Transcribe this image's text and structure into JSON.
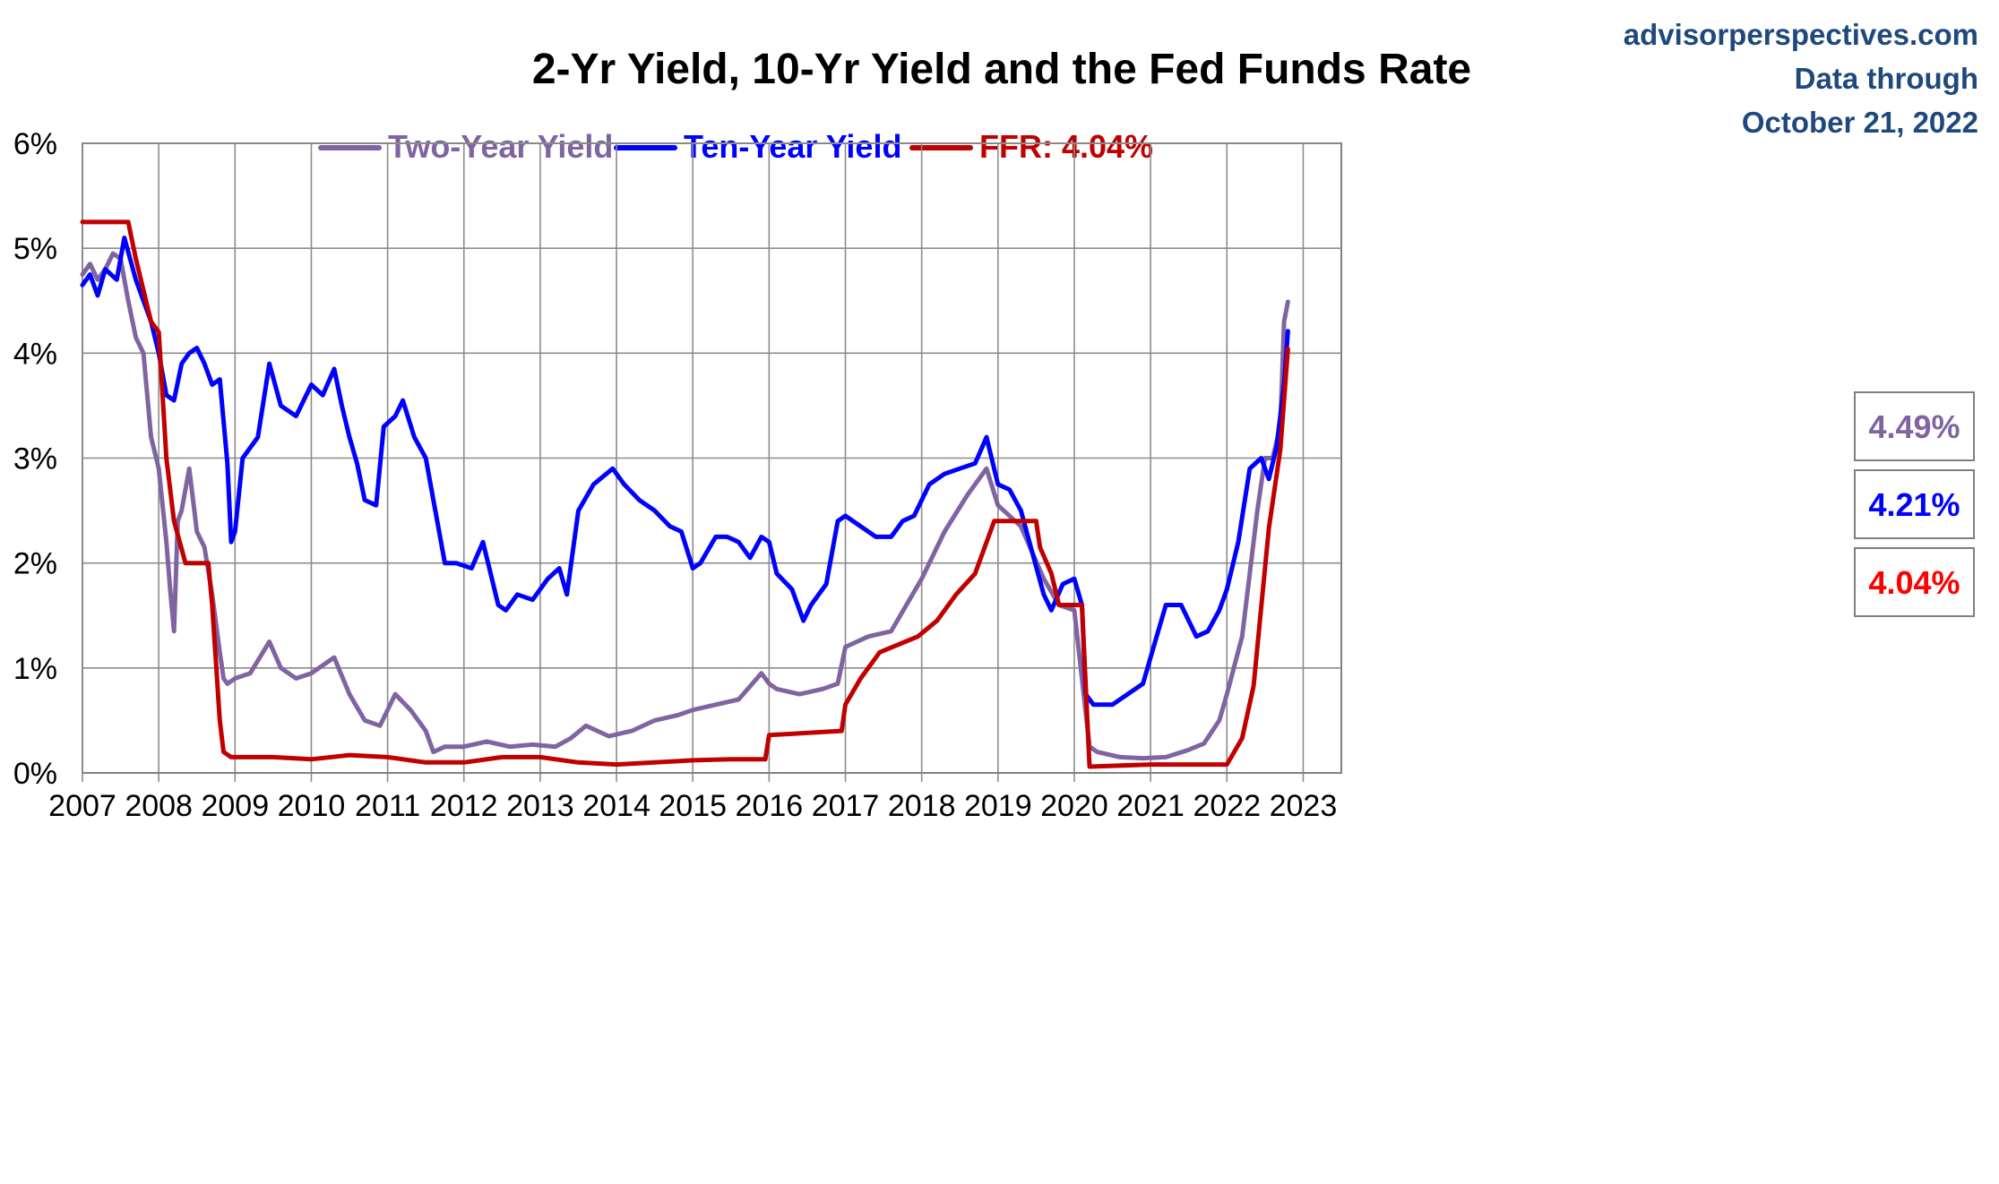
{
  "chart_data": {
    "type": "line",
    "title": "2-Yr Yield, 10-Yr Yield and the Fed Funds Rate",
    "xlabel": "",
    "ylabel": "",
    "xlim": [
      2007,
      2023
    ],
    "ylim": [
      0,
      6
    ],
    "grid": true,
    "legend_position": "top",
    "source_note": {
      "site": "advisorperspectives.com",
      "line2": "Data through",
      "line3": "October 21, 2022"
    },
    "x_ticks": [
      {
        "value": 2007,
        "label": "2007"
      },
      {
        "value": 2008,
        "label": "2008"
      },
      {
        "value": 2009,
        "label": "2009"
      },
      {
        "value": 2010,
        "label": "2010"
      },
      {
        "value": 2011,
        "label": "2011"
      },
      {
        "value": 2012,
        "label": "2012"
      },
      {
        "value": 2013,
        "label": "2013"
      },
      {
        "value": 2014,
        "label": "2014"
      },
      {
        "value": 2015,
        "label": "2015"
      },
      {
        "value": 2016,
        "label": "2016"
      },
      {
        "value": 2017,
        "label": "2017"
      },
      {
        "value": 2018,
        "label": "2018"
      },
      {
        "value": 2019,
        "label": "2019"
      },
      {
        "value": 2020,
        "label": "2020"
      },
      {
        "value": 2021,
        "label": "2021"
      },
      {
        "value": 2022,
        "label": "2022"
      },
      {
        "value": 2023,
        "label": "2023"
      }
    ],
    "y_ticks": [
      {
        "value": 0,
        "label": "0%"
      },
      {
        "value": 1,
        "label": "1%"
      },
      {
        "value": 2,
        "label": "2%"
      },
      {
        "value": 3,
        "label": "3%"
      },
      {
        "value": 4,
        "label": "4%"
      },
      {
        "value": 5,
        "label": "5%"
      },
      {
        "value": 6,
        "label": "6%"
      }
    ],
    "series": [
      {
        "name": "Two-Year Yield",
        "legend_label": "Two-Year Yield",
        "color": "#8064a2",
        "last_value_label": "4.49%",
        "x": [
          2007.0,
          2007.1,
          2007.2,
          2007.3,
          2007.4,
          2007.5,
          2007.6,
          2007.7,
          2007.8,
          2007.9,
          2008.0,
          2008.1,
          2008.15,
          2008.2,
          2008.25,
          2008.3,
          2008.4,
          2008.45,
          2008.5,
          2008.6,
          2008.7,
          2008.8,
          2008.85,
          2008.9,
          2009.0,
          2009.2,
          2009.45,
          2009.6,
          2009.8,
          2010.0,
          2010.3,
          2010.5,
          2010.7,
          2010.9,
          2011.1,
          2011.3,
          2011.5,
          2011.6,
          2011.75,
          2012.0,
          2012.3,
          2012.6,
          2012.9,
          2013.2,
          2013.4,
          2013.6,
          2013.9,
          2014.2,
          2014.5,
          2014.8,
          2015.0,
          2015.3,
          2015.6,
          2015.9,
          2016.0,
          2016.1,
          2016.4,
          2016.7,
          2016.9,
          2017.0,
          2017.3,
          2017.6,
          2017.8,
          2018.0,
          2018.3,
          2018.6,
          2018.85,
          2019.0,
          2019.3,
          2019.6,
          2019.8,
          2020.0,
          2020.1,
          2020.2,
          2020.3,
          2020.6,
          2020.9,
          2021.2,
          2021.5,
          2021.7,
          2021.9,
          2022.0,
          2022.2,
          2022.4,
          2022.5,
          2022.6,
          2022.7,
          2022.75,
          2022.8
        ],
        "y": [
          4.75,
          4.85,
          4.7,
          4.8,
          4.95,
          4.9,
          4.5,
          4.15,
          4.0,
          3.2,
          2.9,
          2.2,
          1.75,
          1.35,
          2.4,
          2.5,
          2.9,
          2.6,
          2.3,
          2.15,
          1.7,
          1.15,
          0.9,
          0.85,
          0.9,
          0.95,
          1.25,
          1.0,
          0.9,
          0.95,
          1.1,
          0.75,
          0.5,
          0.45,
          0.75,
          0.6,
          0.4,
          0.2,
          0.25,
          0.25,
          0.3,
          0.25,
          0.27,
          0.25,
          0.33,
          0.45,
          0.35,
          0.4,
          0.5,
          0.55,
          0.6,
          0.65,
          0.7,
          0.95,
          0.85,
          0.8,
          0.75,
          0.8,
          0.85,
          1.2,
          1.3,
          1.35,
          1.6,
          1.85,
          2.3,
          2.65,
          2.9,
          2.55,
          2.35,
          1.85,
          1.6,
          1.55,
          0.9,
          0.25,
          0.2,
          0.15,
          0.14,
          0.15,
          0.22,
          0.28,
          0.5,
          0.75,
          1.3,
          2.5,
          3.0,
          3.0,
          3.3,
          4.3,
          4.49
        ]
      },
      {
        "name": "Ten-Year Yield",
        "legend_label": "Ten-Year Yield",
        "color": "#0000ff",
        "last_value_label": "4.21%",
        "x": [
          2007.0,
          2007.1,
          2007.2,
          2007.3,
          2007.45,
          2007.55,
          2007.7,
          2007.8,
          2007.9,
          2008.0,
          2008.1,
          2008.2,
          2008.3,
          2008.4,
          2008.5,
          2008.6,
          2008.7,
          2008.8,
          2008.9,
          2008.95,
          2009.0,
          2009.1,
          2009.3,
          2009.45,
          2009.6,
          2009.8,
          2010.0,
          2010.15,
          2010.3,
          2010.4,
          2010.5,
          2010.6,
          2010.7,
          2010.85,
          2010.95,
          2011.1,
          2011.2,
          2011.35,
          2011.5,
          2011.6,
          2011.75,
          2011.9,
          2012.1,
          2012.25,
          2012.45,
          2012.55,
          2012.7,
          2012.9,
          2013.1,
          2013.25,
          2013.35,
          2013.5,
          2013.7,
          2013.95,
          2014.1,
          2014.3,
          2014.5,
          2014.7,
          2014.85,
          2015.0,
          2015.1,
          2015.3,
          2015.45,
          2015.6,
          2015.75,
          2015.9,
          2016.0,
          2016.1,
          2016.3,
          2016.45,
          2016.55,
          2016.75,
          2016.9,
          2017.0,
          2017.2,
          2017.4,
          2017.6,
          2017.75,
          2017.9,
          2018.1,
          2018.3,
          2018.5,
          2018.7,
          2018.85,
          2019.0,
          2019.15,
          2019.3,
          2019.45,
          2019.6,
          2019.7,
          2019.85,
          2020.0,
          2020.1,
          2020.15,
          2020.25,
          2020.5,
          2020.7,
          2020.9,
          2021.1,
          2021.2,
          2021.4,
          2021.6,
          2021.75,
          2021.9,
          2022.0,
          2022.15,
          2022.3,
          2022.45,
          2022.55,
          2022.65,
          2022.75,
          2022.8
        ],
        "y": [
          4.65,
          4.75,
          4.55,
          4.8,
          4.7,
          5.1,
          4.7,
          4.5,
          4.3,
          4.0,
          3.6,
          3.55,
          3.9,
          4.0,
          4.05,
          3.9,
          3.7,
          3.75,
          2.95,
          2.2,
          2.3,
          3.0,
          3.2,
          3.9,
          3.5,
          3.4,
          3.7,
          3.6,
          3.85,
          3.5,
          3.2,
          2.95,
          2.6,
          2.55,
          3.3,
          3.4,
          3.55,
          3.2,
          3.0,
          2.6,
          2.0,
          2.0,
          1.95,
          2.2,
          1.6,
          1.55,
          1.7,
          1.65,
          1.85,
          1.95,
          1.7,
          2.5,
          2.75,
          2.9,
          2.75,
          2.6,
          2.5,
          2.35,
          2.3,
          1.95,
          2.0,
          2.25,
          2.25,
          2.2,
          2.05,
          2.25,
          2.2,
          1.9,
          1.75,
          1.45,
          1.6,
          1.8,
          2.4,
          2.45,
          2.35,
          2.25,
          2.25,
          2.4,
          2.45,
          2.75,
          2.85,
          2.9,
          2.95,
          3.2,
          2.75,
          2.7,
          2.5,
          2.1,
          1.7,
          1.55,
          1.8,
          1.85,
          1.6,
          0.75,
          0.65,
          0.65,
          0.75,
          0.85,
          1.35,
          1.6,
          1.6,
          1.3,
          1.35,
          1.55,
          1.75,
          2.2,
          2.9,
          3.0,
          2.8,
          3.1,
          3.7,
          4.21
        ]
      },
      {
        "name": "FFR",
        "legend_label": "FFR: 4.04%",
        "color": "#c00000",
        "last_value_label": "4.04%",
        "x": [
          2007.0,
          2007.6,
          2007.7,
          2007.8,
          2007.9,
          2008.0,
          2008.1,
          2008.2,
          2008.35,
          2008.5,
          2008.65,
          2008.7,
          2008.8,
          2008.85,
          2008.95,
          2009.5,
          2010.0,
          2010.5,
          2011.0,
          2011.5,
          2012.0,
          2012.5,
          2013.0,
          2013.5,
          2014.0,
          2014.5,
          2015.0,
          2015.5,
          2015.95,
          2016.0,
          2016.95,
          2017.0,
          2017.2,
          2017.45,
          2017.95,
          2018.2,
          2018.45,
          2018.7,
          2018.95,
          2019.5,
          2019.55,
          2019.7,
          2019.8,
          2020.1,
          2020.2,
          2021.0,
          2022.0,
          2022.2,
          2022.35,
          2022.45,
          2022.55,
          2022.7,
          2022.8
        ],
        "y": [
          5.25,
          5.25,
          4.9,
          4.6,
          4.3,
          4.2,
          3.0,
          2.4,
          2.0,
          2.0,
          2.0,
          1.6,
          0.5,
          0.2,
          0.15,
          0.15,
          0.13,
          0.17,
          0.15,
          0.1,
          0.1,
          0.15,
          0.15,
          0.1,
          0.08,
          0.1,
          0.12,
          0.13,
          0.13,
          0.36,
          0.4,
          0.65,
          0.9,
          1.15,
          1.3,
          1.45,
          1.7,
          1.9,
          2.4,
          2.4,
          2.15,
          1.9,
          1.6,
          1.6,
          0.06,
          0.08,
          0.08,
          0.33,
          0.83,
          1.58,
          2.33,
          3.08,
          4.04
        ]
      }
    ]
  }
}
